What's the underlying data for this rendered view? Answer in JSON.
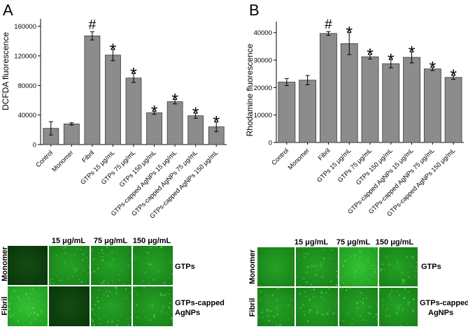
{
  "chart_data": [
    {
      "panel": "A",
      "type": "bar",
      "ylabel": "DCFDA fluorescence",
      "xlabel": "",
      "ylim": [
        0,
        170000
      ],
      "yticks": [
        0,
        40000,
        80000,
        120000,
        160000
      ],
      "categories": [
        "Control",
        "Monomer",
        "Fibril",
        "GTPs 15 μg/mL",
        "GTPs 75 μg/mL",
        "GTPs 150 μg/mL",
        "GTPs-capped AgNPs 15 μg/mL",
        "GTPs-capped AgNPs 75 μg/mL",
        "GTPs-capped AgNPs 150 μg/mL"
      ],
      "values": [
        22000,
        28000,
        147000,
        121000,
        90000,
        43000,
        58000,
        39000,
        24000
      ],
      "errors": [
        9000,
        1500,
        5500,
        7500,
        6000,
        2000,
        3000,
        3500,
        6500
      ],
      "markers": [
        "",
        "",
        "#",
        "*",
        "*",
        "*",
        "*",
        "*",
        "*"
      ]
    },
    {
      "panel": "B",
      "type": "bar",
      "ylabel": "Rhodamine fluorescence",
      "xlabel": "",
      "ylim": [
        0,
        44000
      ],
      "yticks": [
        0,
        10000,
        20000,
        30000,
        40000
      ],
      "categories": [
        "Control",
        "Monomer",
        "Fibril",
        "GTPs 15 μg/mL",
        "GTPs 75 μg/mL",
        "GTPs 150 μg/mL",
        "GTPs-capped AgNPs 15 μg/mL",
        "GTPs-capped AgNPs 75 μg/mL",
        "GTPs-capped AgNPs 150 μg/mL"
      ],
      "values": [
        22000,
        22700,
        39700,
        36000,
        31200,
        28700,
        31000,
        26800,
        23700
      ],
      "errors": [
        1300,
        1700,
        700,
        4000,
        800,
        1500,
        2000,
        600,
        700
      ],
      "markers": [
        "",
        "",
        "#",
        "*",
        "*",
        "*",
        "*",
        "*",
        "*"
      ]
    }
  ],
  "micrographs": [
    {
      "panel": "A",
      "columns": [
        "15 μg/mL",
        "75 μg/mL",
        "150 μg/mL"
      ],
      "rows": [
        "Monomer",
        "Fibril"
      ],
      "groups": [
        "GTPs",
        "GTPs-capped AgNPs"
      ]
    },
    {
      "panel": "B",
      "columns": [
        "15 μg/mL",
        "75 μg/mL",
        "150 μg/mL"
      ],
      "rows": [
        "Monomer",
        "Fibril"
      ],
      "groups": [
        "GTPs",
        "GTPs-capped AgNPs"
      ]
    }
  ],
  "colors": {
    "bar": "#8c8c8c",
    "bar_edge": "#3a3a3a",
    "fluor_dark": "#0b3a0b",
    "fluor_bright": "#2fbf2f"
  }
}
